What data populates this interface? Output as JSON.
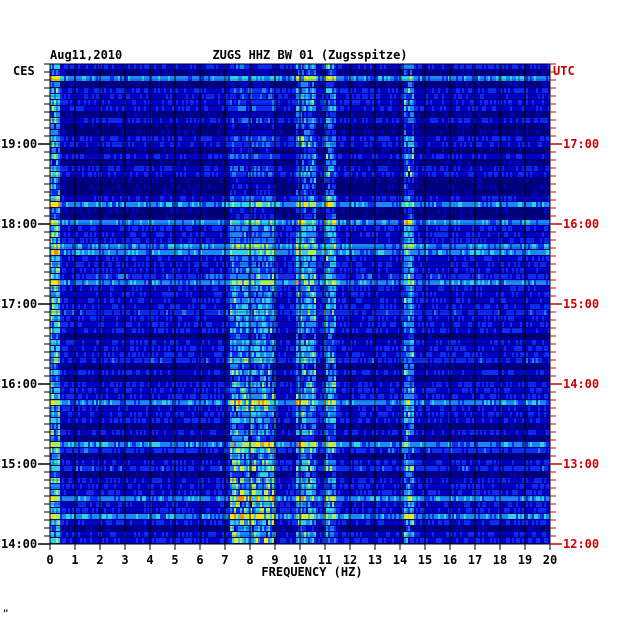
{
  "chart_data": {
    "type": "heatmap",
    "title": "ZUGS HHZ BW 01 (Zugsspitze)",
    "date": "Aug11,2010",
    "xlabel": "FREQUENCY (HZ)",
    "left_axis_label": "CES",
    "right_axis_label": "UTC",
    "xlim": [
      0,
      20
    ],
    "x_ticks": [
      "0",
      "1",
      "2",
      "3",
      "4",
      "5",
      "6",
      "7",
      "8",
      "9",
      "10",
      "11",
      "12",
      "13",
      "14",
      "15",
      "16",
      "17",
      "18",
      "19",
      "20"
    ],
    "left_time_ticks": [
      "14:00",
      "15:00",
      "16:00",
      "17:00",
      "18:00",
      "19:00"
    ],
    "right_time_ticks": [
      "12:00",
      "13:00",
      "14:00",
      "15:00",
      "16:00",
      "17:00"
    ],
    "time_range_utc": [
      "12:00",
      "17:55"
    ],
    "colormap": [
      "#00007a",
      "#0000c8",
      "#0a2cff",
      "#1a86ff",
      "#2ad4e0",
      "#a8f05a",
      "#ffe600",
      "#ff8a00"
    ],
    "strong_bands_hz": [
      [
        7.2,
        9.0
      ],
      [
        9.8,
        10.6
      ],
      [
        10.9,
        11.4
      ],
      [
        14.1,
        14.5
      ]
    ],
    "grid": true
  },
  "colors": {
    "left_axis": "#000000",
    "right_axis": "#cc0000",
    "background": "#ffffff"
  },
  "footnote": "\""
}
